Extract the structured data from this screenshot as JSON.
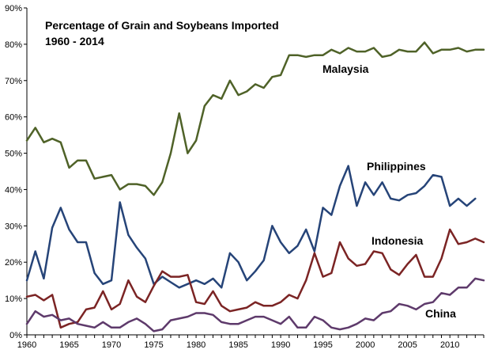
{
  "chart_data": {
    "type": "line",
    "title": "Percentage of Grain and Soybeans Imported",
    "subtitle": "1960 - 2014",
    "xlabel": "",
    "ylabel": "",
    "xlim": [
      1960,
      2014
    ],
    "ylim": [
      0,
      90
    ],
    "x_ticks": [
      1960,
      1965,
      1970,
      1975,
      1980,
      1985,
      1990,
      1995,
      2000,
      2005,
      2010
    ],
    "y_ticks": [
      "0%",
      "10%",
      "20%",
      "30%",
      "40%",
      "50%",
      "60%",
      "70%",
      "80%",
      "90%"
    ],
    "grid": false,
    "legend": "none (series labelled directly on chart)",
    "x": [
      1960,
      1961,
      1962,
      1963,
      1964,
      1965,
      1966,
      1967,
      1968,
      1969,
      1970,
      1971,
      1972,
      1973,
      1974,
      1975,
      1976,
      1977,
      1978,
      1979,
      1980,
      1981,
      1982,
      1983,
      1984,
      1985,
      1986,
      1987,
      1988,
      1989,
      1990,
      1991,
      1992,
      1993,
      1994,
      1995,
      1996,
      1997,
      1998,
      1999,
      2000,
      2001,
      2002,
      2003,
      2004,
      2005,
      2006,
      2007,
      2008,
      2009,
      2010,
      2011,
      2012,
      2013,
      2014
    ],
    "series": [
      {
        "name": "Malaysia",
        "color": "#4f6228",
        "values": [
          53.5,
          57,
          53,
          54,
          53,
          46,
          48,
          48,
          43,
          43.5,
          44,
          40,
          41.5,
          41.5,
          41,
          38.5,
          42,
          50,
          61,
          50,
          53.5,
          63,
          66,
          65,
          70,
          66,
          67,
          69,
          68,
          71,
          71.5,
          77,
          77,
          76.5,
          77,
          77,
          78.5,
          77.5,
          79,
          78,
          78,
          79,
          76.5,
          77,
          78.5,
          78,
          78,
          80.5,
          77.5,
          78.5,
          78.5,
          79,
          78,
          78.5,
          78.5
        ]
      },
      {
        "name": "Philippines",
        "color": "#264478",
        "values": [
          15,
          23,
          15.5,
          29.5,
          35,
          29,
          25.5,
          25.5,
          17,
          14,
          15,
          36.5,
          27.5,
          24,
          21,
          14,
          16,
          14.5,
          13,
          14,
          15,
          14,
          15.5,
          13,
          22.5,
          20,
          15,
          17.5,
          20.5,
          30,
          25.5,
          22.5,
          24.5,
          29,
          23,
          35,
          33,
          41,
          46.5,
          35.5,
          42,
          38.5,
          42,
          37.5,
          37,
          38.5,
          39,
          41,
          44,
          43.5,
          35.5,
          37.5,
          35.5,
          37.5,
          null
        ]
      },
      {
        "name": "Indonesia",
        "color": "#7b2424",
        "values": [
          10.5,
          11,
          9.5,
          11,
          2,
          3,
          3.5,
          7,
          7.5,
          12,
          7,
          8.5,
          15,
          10.5,
          9,
          13.5,
          17.5,
          16,
          16,
          16.5,
          9,
          8.5,
          12,
          8,
          6.5,
          7,
          7.5,
          9,
          8,
          8,
          9,
          11,
          10,
          15,
          22.5,
          16,
          17,
          25.5,
          21,
          19,
          19.5,
          23,
          22.5,
          18,
          16.5,
          19.5,
          22,
          16,
          16,
          21,
          29,
          25,
          25.5,
          26.5,
          25.5
        ]
      },
      {
        "name": "China",
        "color": "#5e3a6b",
        "values": [
          3,
          6.5,
          5,
          5.5,
          4,
          4.5,
          3,
          2.5,
          2,
          3.5,
          2,
          2,
          3.5,
          4.5,
          3,
          1,
          1.5,
          4,
          4.5,
          5,
          6,
          6,
          5.5,
          3.5,
          3,
          3,
          4,
          5,
          5,
          4,
          3,
          5,
          2,
          2,
          5,
          4,
          2,
          1.5,
          2,
          3,
          4.5,
          4,
          6,
          6.5,
          8.5,
          8,
          7,
          8.5,
          9,
          11.5,
          11,
          13,
          13,
          15.5,
          15
        ]
      }
    ],
    "series_labels": [
      "Malaysia",
      "Philippines",
      "Indonesia",
      "China"
    ]
  }
}
